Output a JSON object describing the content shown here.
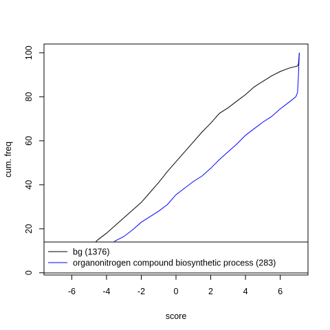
{
  "chart_data": {
    "type": "line",
    "xlabel": "score",
    "ylabel": "cum. freq",
    "xlim": [
      -7.6,
      7.6
    ],
    "ylim": [
      -1,
      104
    ],
    "x_ticks": [
      -6,
      -4,
      -2,
      0,
      2,
      4,
      6
    ],
    "y_ticks": [
      0,
      20,
      40,
      60,
      80,
      100
    ],
    "grid": false,
    "legend_position": "bottom",
    "series": [
      {
        "name": "bg (1376)",
        "color": "#000000",
        "x": [
          -7.6,
          -6.0,
          -5.0,
          -4.5,
          -4.0,
          -3.5,
          -3.0,
          -2.5,
          -2.0,
          -1.5,
          -1.0,
          -0.5,
          0.0,
          0.5,
          1.0,
          1.5,
          2.0,
          2.5,
          3.0,
          3.5,
          4.0,
          4.5,
          5.0,
          5.5,
          6.0,
          6.5,
          7.0,
          7.05,
          7.1
        ],
        "y": [
          0.0,
          6.5,
          11.0,
          15.0,
          18.0,
          21.5,
          25.0,
          28.5,
          32.0,
          36.5,
          41.0,
          46.0,
          50.5,
          55.0,
          59.5,
          64.0,
          68.0,
          72.5,
          75.0,
          78.0,
          81.0,
          84.5,
          87.0,
          89.5,
          91.5,
          93.0,
          94.0,
          95.0,
          100.0
        ]
      },
      {
        "name": "organonitrogen compound biosynthetic process (283)",
        "color": "#0000ff",
        "x": [
          -7.6,
          -5.0,
          -4.0,
          -3.5,
          -3.0,
          -2.5,
          -2.0,
          -1.5,
          -1.0,
          -0.5,
          0.0,
          0.5,
          1.0,
          1.5,
          2.0,
          2.5,
          3.0,
          3.5,
          4.0,
          4.5,
          5.0,
          5.5,
          6.0,
          6.5,
          6.9,
          7.0,
          7.05,
          7.1
        ],
        "y": [
          0.0,
          5.0,
          11.0,
          14.5,
          16.5,
          19.5,
          23.0,
          25.5,
          28.0,
          31.0,
          35.5,
          38.5,
          41.5,
          44.0,
          47.5,
          51.5,
          55.0,
          58.5,
          62.5,
          65.5,
          68.5,
          71.0,
          74.5,
          77.5,
          80.0,
          82.0,
          90.0,
          100.0
        ]
      }
    ]
  }
}
